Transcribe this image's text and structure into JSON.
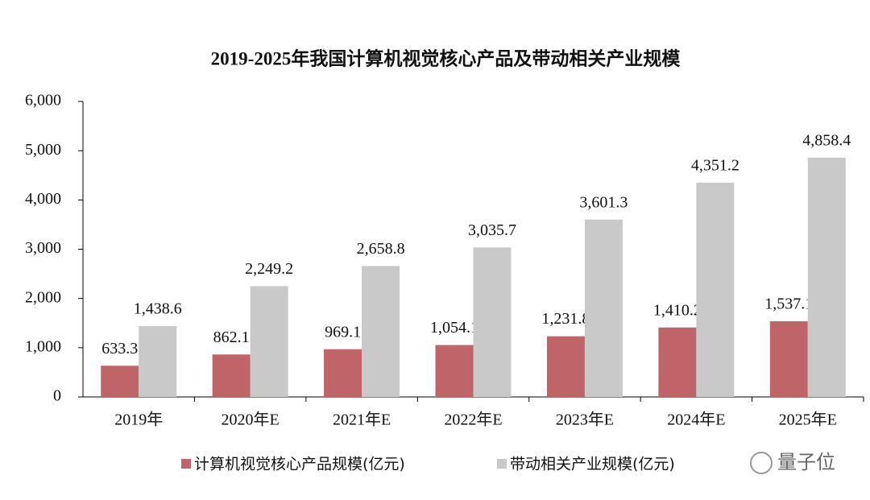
{
  "chart_data": {
    "type": "bar",
    "title": "2019-2025年我国计算机视觉核心产品及带动相关产业规模",
    "categories": [
      "2019年",
      "2020年E",
      "2021年E",
      "2022年E",
      "2023年E",
      "2024年E",
      "2025年E"
    ],
    "series": [
      {
        "name": "计算机视觉核心产品规模(亿元)",
        "color": "#bf6467",
        "values": [
          633.3,
          862.1,
          969.1,
          1054.1,
          1231.8,
          1410.2,
          1537.1
        ],
        "value_labels": [
          "633.3",
          "862.1",
          "969.1",
          "1,054.1",
          "1,231.8",
          "1,410.2",
          "1,537.1"
        ]
      },
      {
        "name": "带动相关产业规模(亿元)",
        "color": "#c9c9c9",
        "values": [
          1438.6,
          2249.2,
          2658.8,
          3035.7,
          3601.3,
          4351.2,
          4858.4
        ],
        "value_labels": [
          "1,438.6",
          "2,249.2",
          "2,658.8",
          "3,035.7",
          "3,601.3",
          "4,351.2",
          "4,858.4"
        ]
      }
    ],
    "ylim": [
      0,
      6000
    ],
    "yticks": [
      0,
      {
        "value": 1000,
        "label": "1,000"
      },
      {
        "value": 2000,
        "label": "2,000"
      },
      {
        "value": 3000,
        "label": "3,000"
      },
      {
        "value": 4000,
        "label": "4,000"
      },
      {
        "value": 5000,
        "label": "5,000"
      },
      {
        "value": 6000,
        "label": "6,000"
      }
    ],
    "legend": "bottom",
    "watermark": "量子位"
  }
}
